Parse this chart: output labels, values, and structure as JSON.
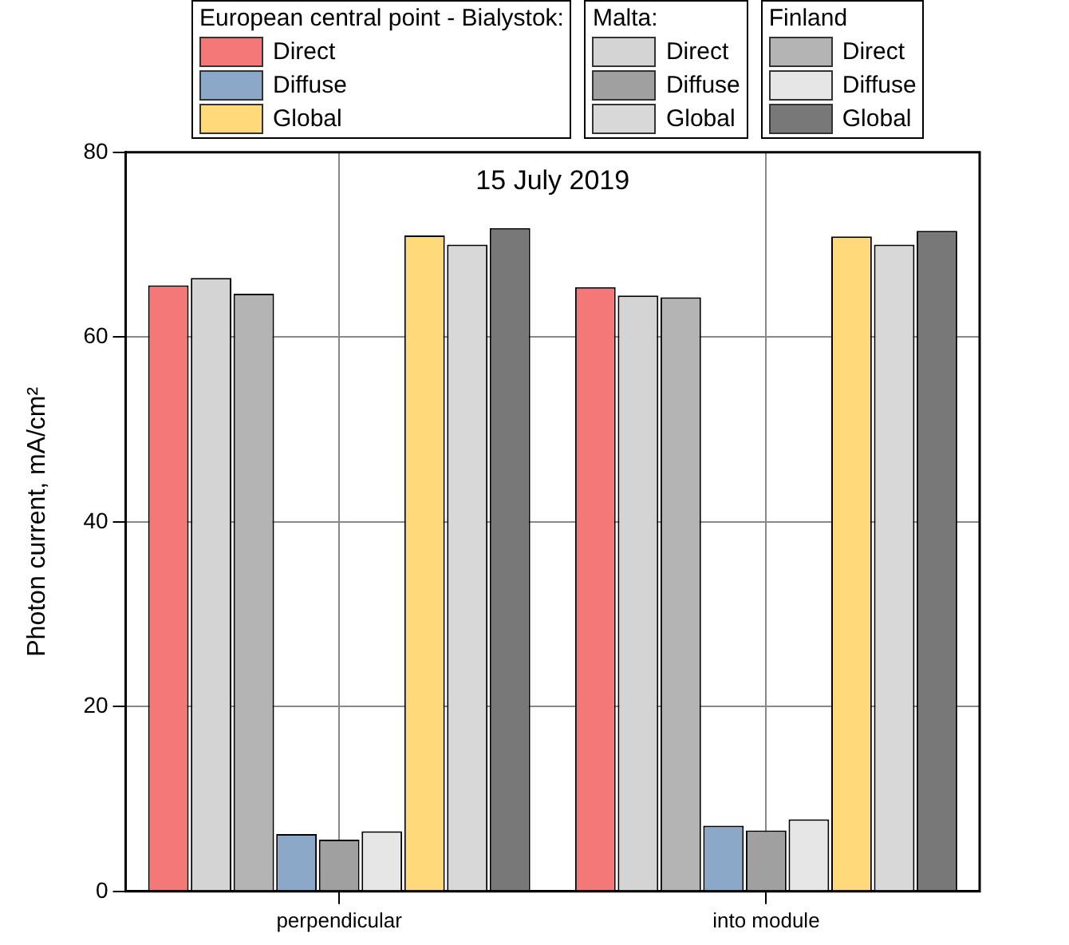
{
  "chart_data": {
    "type": "bar",
    "title": "15 July 2019",
    "ylabel": "Photon current, mA/cm²",
    "categories": [
      "perpendicular",
      "into module"
    ],
    "series": [
      {
        "name": "Direct",
        "color": "#f57878",
        "values": [
          65.6,
          65.4
        ]
      },
      {
        "name": "Diffuse",
        "color": "#8ca8c8",
        "values": [
          6.2,
          7.1
        ]
      },
      {
        "name": "Global",
        "color": "#ffd97a",
        "values": [
          71.0,
          70.9
        ]
      },
      {
        "name": "Direct",
        "color": "#d4d4d4",
        "values": [
          66.4,
          64.5
        ]
      },
      {
        "name": "Diffuse",
        "color": "#a0a0a0",
        "values": [
          5.6,
          6.6
        ]
      },
      {
        "name": "Global",
        "color": "#d8d8d8",
        "values": [
          70.0,
          70.0
        ]
      },
      {
        "name": "Direct",
        "color": "#b4b4b4",
        "values": [
          64.7,
          64.3
        ]
      },
      {
        "name": "Diffuse",
        "color": "#e6e6e6",
        "values": [
          6.5,
          7.8
        ]
      },
      {
        "name": "Global",
        "color": "#787878",
        "values": [
          71.8,
          71.5
        ]
      }
    ],
    "annotations": [
      "European central point - Bialystok:",
      "Malta:",
      "Finland"
    ],
    "ylim": [
      0,
      80
    ],
    "yticks": [
      0,
      20,
      40,
      60,
      80
    ],
    "grid": true,
    "legend": "top"
  }
}
